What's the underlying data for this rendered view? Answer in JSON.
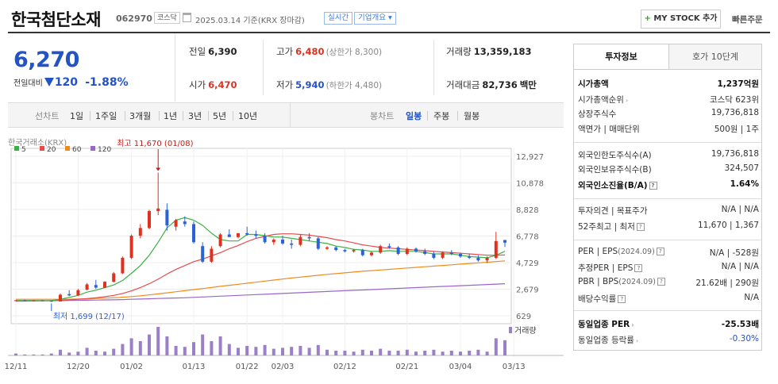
{
  "header": {
    "company": "한국첨단소재",
    "code": "062970",
    "market": "코스닥",
    "date_text": "2025.03.14  기준(KRX 장마감)",
    "realtime": "실시간",
    "company_info": "기업개요 ▾",
    "mystock": "MY STOCK 추가",
    "mystock_plus": "+",
    "quick_order": "빠른주문"
  },
  "price": {
    "current": "6,270",
    "change_label": "전일대비",
    "change": "120",
    "change_pct": "-1.88%"
  },
  "stats": {
    "prev_label": "전일",
    "prev": "6,390",
    "high_label": "고가",
    "high": "6,480",
    "high_sub": "(상한가 8,300)",
    "volume_label": "거래량",
    "volume": "13,359,183",
    "open_label": "시가",
    "open": "6,470",
    "low_label": "저가",
    "low": "5,940",
    "low_sub": "(하한가 4,480)",
    "amount_label": "거래대금",
    "amount": "82,736",
    "amount_unit": "백만"
  },
  "tabs": {
    "line_label": "선차트",
    "line": [
      "1일",
      "1주일",
      "3개월",
      "1년",
      "3년",
      "5년",
      "10년"
    ],
    "candle_label": "봉차트",
    "candle": [
      "일봉",
      "주봉",
      "월봉"
    ],
    "candle_active": "일봉"
  },
  "chart_data": {
    "type": "candlestick",
    "source_label": "한국거래소(KRX)",
    "ma_legend": [
      {
        "name": "5",
        "color": "#3cb043"
      },
      {
        "name": "20",
        "color": "#e84a4a"
      },
      {
        "name": "60",
        "color": "#f08c1e"
      },
      {
        "name": "120",
        "color": "#9966cc"
      }
    ],
    "y_ticks": [
      12927,
      10878,
      8828,
      6778,
      4729,
      2679,
      629
    ],
    "y_tick_labels": [
      "12,927",
      "10,878",
      "8,828",
      "6,778",
      "4,729",
      "2,679",
      "629"
    ],
    "ylim": [
      629,
      12927
    ],
    "x_labels": [
      "12/11",
      "12/20",
      "01/02",
      "01/13",
      "01/22",
      "02/03",
      "02/12",
      "02/21",
      "03/04",
      "03/13"
    ],
    "x_label_index": [
      0,
      7,
      13,
      20,
      26,
      30,
      37,
      44,
      50,
      56
    ],
    "high_annotation": "최고 11,670 (01/08)",
    "low_annotation": "최저 1,699 (12/17)",
    "volume_label": "거래량",
    "candles": [
      [
        1800,
        1850,
        1750,
        1820
      ],
      [
        1820,
        1870,
        1780,
        1790
      ],
      [
        1790,
        1830,
        1760,
        1810
      ],
      [
        1810,
        1840,
        1770,
        1780
      ],
      [
        1780,
        1800,
        1699,
        1730
      ],
      [
        1730,
        2350,
        1720,
        2250
      ],
      [
        2300,
        2600,
        2150,
        2200
      ],
      [
        2200,
        2700,
        2150,
        2600
      ],
      [
        2650,
        3150,
        2600,
        3050
      ],
      [
        3000,
        3400,
        2700,
        2800
      ],
      [
        2800,
        3300,
        2750,
        3250
      ],
      [
        3250,
        4000,
        3200,
        3900
      ],
      [
        3900,
        5200,
        3850,
        5100
      ],
      [
        5100,
        6900,
        5000,
        6800
      ],
      [
        6800,
        7700,
        6600,
        7400
      ],
      [
        7400,
        8800,
        7300,
        8700
      ],
      [
        8700,
        11670,
        8400,
        8900
      ],
      [
        8800,
        9300,
        7200,
        7600
      ],
      [
        7500,
        8100,
        7200,
        8000
      ],
      [
        7900,
        8300,
        7500,
        7700
      ],
      [
        7700,
        7900,
        6200,
        6300
      ],
      [
        6000,
        6300,
        4700,
        4800
      ],
      [
        4800,
        6000,
        4700,
        5800
      ],
      [
        6000,
        7000,
        5900,
        6900
      ],
      [
        6900,
        7300,
        6800,
        6700
      ],
      [
        6700,
        7000,
        6600,
        7000
      ],
      [
        7000,
        7500,
        6800,
        6900
      ],
      [
        6900,
        7200,
        6600,
        6800
      ],
      [
        6800,
        7000,
        6200,
        6300
      ],
      [
        6300,
        6600,
        6100,
        6500
      ],
      [
        6500,
        6800,
        6100,
        6200
      ],
      [
        6200,
        6500,
        5800,
        6100
      ],
      [
        6100,
        6900,
        6000,
        6700
      ],
      [
        6700,
        7000,
        6400,
        6600
      ],
      [
        6600,
        6700,
        5700,
        5800
      ],
      [
        5800,
        6000,
        5700,
        5900
      ],
      [
        5900,
        6000,
        5600,
        5700
      ],
      [
        5700,
        5800,
        5500,
        5600
      ],
      [
        5600,
        5800,
        5500,
        5700
      ],
      [
        5700,
        5800,
        5200,
        5300
      ],
      [
        5300,
        5600,
        5200,
        5500
      ],
      [
        5500,
        6100,
        5400,
        6000
      ],
      [
        6000,
        6200,
        5800,
        5900
      ],
      [
        5900,
        6000,
        5300,
        5400
      ],
      [
        5400,
        5900,
        5300,
        5800
      ],
      [
        5800,
        5900,
        5500,
        5600
      ],
      [
        5600,
        5800,
        5300,
        5400
      ],
      [
        5400,
        5600,
        5000,
        5100
      ],
      [
        5100,
        5600,
        5000,
        5500
      ],
      [
        5500,
        5700,
        5300,
        5400
      ],
      [
        5400,
        5500,
        5100,
        5200
      ],
      [
        5200,
        5400,
        5000,
        5100
      ],
      [
        5100,
        5300,
        4800,
        4900
      ],
      [
        4900,
        5200,
        4700,
        5100
      ],
      [
        5100,
        7100,
        5000,
        6390
      ],
      [
        6470,
        6480,
        5940,
        6270
      ]
    ],
    "volumes": [
      2,
      1,
      1,
      1,
      2,
      6,
      3,
      4,
      8,
      5,
      4,
      7,
      12,
      18,
      15,
      22,
      30,
      20,
      10,
      9,
      14,
      22,
      15,
      20,
      12,
      8,
      10,
      9,
      11,
      7,
      8,
      9,
      10,
      8,
      11,
      6,
      5,
      5,
      4,
      6,
      5,
      7,
      5,
      5,
      6,
      4,
      5,
      6,
      4,
      5,
      4,
      5,
      6,
      4,
      18,
      16
    ],
    "ma5": [
      1800,
      1800,
      1800,
      1790,
      1790,
      1900,
      2050,
      2200,
      2450,
      2600,
      2800,
      3000,
      3350,
      3900,
      4500,
      5300,
      6300,
      7400,
      8000,
      8200,
      8000,
      7600,
      7000,
      6500,
      6400,
      6400,
      6900,
      6900,
      6800,
      6700,
      6700,
      6600,
      6500,
      6400,
      6300,
      6200,
      6000,
      5900,
      5750,
      5700,
      5600,
      5600,
      5650,
      5600,
      5600,
      5600,
      5500,
      5400,
      5400,
      5400,
      5300,
      5200,
      5150,
      5100,
      5300,
      5600
    ],
    "ma20": [
      1800,
      1800,
      1800,
      1800,
      1800,
      1820,
      1850,
      1900,
      1950,
      2020,
      2100,
      2200,
      2350,
      2550,
      2800,
      3100,
      3450,
      3850,
      4200,
      4500,
      4800,
      5000,
      5250,
      5500,
      5800,
      6050,
      6350,
      6600,
      6750,
      6900,
      6950,
      6950,
      6900,
      6850,
      6750,
      6650,
      6500,
      6400,
      6250,
      6100,
      6000,
      5900,
      5850,
      5800,
      5750,
      5700,
      5650,
      5600,
      5550,
      5500,
      5450,
      5400,
      5350,
      5300,
      5300,
      5320
    ],
    "ma60": [
      1900,
      1900,
      1900,
      1900,
      1900,
      1900,
      1910,
      1920,
      1940,
      1960,
      1990,
      2020,
      2060,
      2110,
      2170,
      2240,
      2320,
      2400,
      2480,
      2560,
      2650,
      2730,
      2810,
      2900,
      2980,
      3060,
      3140,
      3220,
      3300,
      3380,
      3460,
      3540,
      3610,
      3680,
      3750,
      3820,
      3880,
      3940,
      4000,
      4060,
      4110,
      4160,
      4210,
      4260,
      4310,
      4360,
      4410,
      4460,
      4510,
      4560,
      4610,
      4660,
      4710,
      4760,
      4810,
      4860
    ],
    "ma120": [
      1750,
      1760,
      1770,
      1780,
      1790,
      1800,
      1810,
      1820,
      1830,
      1840,
      1850,
      1860,
      1880,
      1900,
      1920,
      1940,
      1960,
      1980,
      2000,
      2020,
      2050,
      2080,
      2110,
      2140,
      2170,
      2200,
      2230,
      2260,
      2290,
      2320,
      2350,
      2380,
      2410,
      2440,
      2470,
      2500,
      2530,
      2560,
      2590,
      2620,
      2650,
      2680,
      2710,
      2740,
      2770,
      2800,
      2830,
      2860,
      2890,
      2920,
      2950,
      2980,
      3010,
      3040,
      3070,
      3100
    ]
  },
  "info": {
    "tab_on": "투자정보",
    "tab_off": "호가 10단계",
    "rows": [
      {
        "k": "시가총액",
        "v": "1,237억원"
      },
      {
        "k": "시가총액순위",
        "v": "코스닥 623위"
      },
      {
        "k": "상장주식수",
        "v": "19,736,818"
      },
      {
        "k": "액면가 | 매매단위",
        "v": "500원 | 1주"
      },
      {
        "k": "외국인한도주식수(A)",
        "v": "19,736,818"
      },
      {
        "k": "외국인보유주식수(B)",
        "v": "324,507"
      },
      {
        "k": "외국인소진율(B/A)",
        "v": "1.64%"
      },
      {
        "k": "투자의견 | 목표주가",
        "v": "N/A | N/A"
      },
      {
        "k": "52주최고 | 최저",
        "v": "11,670 | 1,367"
      },
      {
        "k": "PER | EPS",
        "k_small": "(2024.09)",
        "v": "N/A | -528원"
      },
      {
        "k": "추정PER | EPS",
        "v": "N/A | N/A"
      },
      {
        "k": "PBR | BPS",
        "k_small": "(2024.09)",
        "v": "21.62배 | 290원"
      },
      {
        "k": "배당수익률",
        "v": "N/A"
      },
      {
        "k": "동일업종 PER",
        "v": "-25.53배"
      },
      {
        "k": "동일업종 등락률",
        "v": "-0.30%"
      }
    ]
  }
}
